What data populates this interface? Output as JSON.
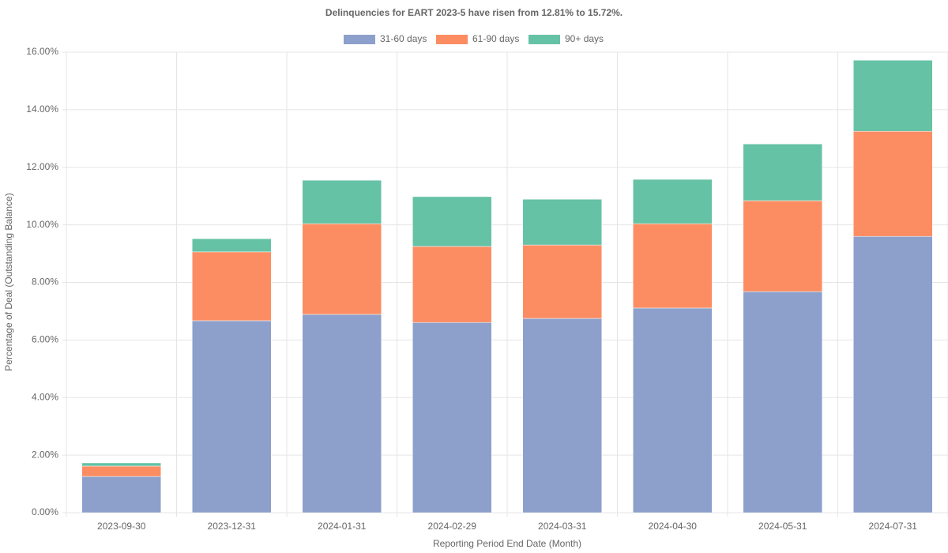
{
  "chart_data": {
    "type": "stacked_bar",
    "title": "Delinquencies for EART 2023-5 have risen from 12.81% to 15.72%.",
    "x_label": "Reporting Period End Date (Month)",
    "y_label": "Percentage of Deal (Outstanding Balance)",
    "categories": [
      "2023-09-30",
      "2023-12-31",
      "2024-01-31",
      "2024-02-29",
      "2024-03-31",
      "2024-04-30",
      "2024-05-31",
      "2024-07-31"
    ],
    "series": [
      {
        "name": "31-60 days",
        "color": "#8da0cb",
        "values": [
          1.26,
          6.67,
          6.89,
          6.61,
          6.75,
          7.11,
          7.68,
          9.6
        ]
      },
      {
        "name": "61-90 days",
        "color": "#fc8d62",
        "values": [
          0.36,
          2.39,
          3.15,
          2.64,
          2.55,
          2.93,
          3.16,
          3.65
        ]
      },
      {
        "name": "90+ days",
        "color": "#66c2a5",
        "values": [
          0.11,
          0.46,
          1.51,
          1.73,
          1.59,
          1.54,
          1.97,
          2.47
        ]
      }
    ],
    "ylim": [
      0,
      16
    ],
    "yticks": [
      {
        "value": 0,
        "label": "0.00%"
      },
      {
        "value": 2,
        "label": "2.00%"
      },
      {
        "value": 4,
        "label": "4.00%"
      },
      {
        "value": 6,
        "label": "6.00%"
      },
      {
        "value": 8,
        "label": "8.00%"
      },
      {
        "value": 10,
        "label": "10.00%"
      },
      {
        "value": 12,
        "label": "12.00%"
      },
      {
        "value": 14,
        "label": "14.00%"
      },
      {
        "value": 16,
        "label": "16.00%"
      }
    ],
    "grid": true,
    "legend": "top"
  }
}
